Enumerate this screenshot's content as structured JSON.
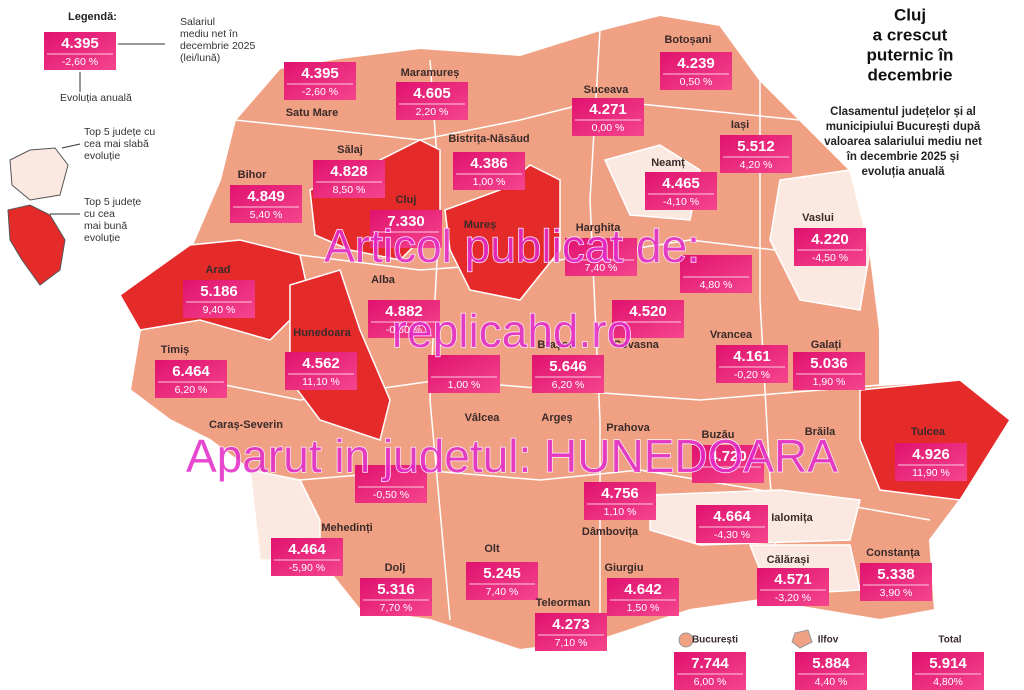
{
  "header": {
    "title": [
      "Cluj",
      "a crescut",
      "puternic în",
      "decembrie"
    ],
    "subtitle": [
      "Clasamentul județelor și al",
      "municipiului București după",
      "valoarea salariului mediu net",
      "în decembrie 2025 și",
      "evoluția anuală"
    ]
  },
  "legend": {
    "heading": "Legendă:",
    "sample": {
      "salary": "4.395",
      "change": "-2,60 %"
    },
    "salary_note": [
      "Salariul",
      "mediu net în",
      "decembrie 2025",
      "(lei/lună)"
    ],
    "change_note": "Evoluția anuală",
    "worst_note": [
      "Top 5 județe cu",
      "cea mai slabă",
      "evoluție"
    ],
    "best_note": [
      "Top 5 județe",
      "cu cea",
      "mai bună",
      "evoluție"
    ]
  },
  "counties": [
    {
      "name": "Satu Mare",
      "salary": "4.395",
      "change": "-2,60 %"
    },
    {
      "name": "Maramureș",
      "salary": "4.605",
      "change": "2,20 %"
    },
    {
      "name": "Botoșani",
      "salary": "4.239",
      "change": "0,50 %"
    },
    {
      "name": "Suceava",
      "salary": "4.271",
      "change": "0,00 %"
    },
    {
      "name": "Iași",
      "salary": "5.512",
      "change": "4,20 %"
    },
    {
      "name": "Neamț",
      "salary": "4.465",
      "change": "-4,10 %"
    },
    {
      "name": "Bistrița-Năsăud",
      "salary": "4.386",
      "change": "1,00 %"
    },
    {
      "name": "Sălaj",
      "salary": "4.828",
      "change": "8,50 %"
    },
    {
      "name": "Bihor",
      "salary": "4.849",
      "change": "5,40 %"
    },
    {
      "name": "Cluj",
      "salary": "7.330"
    },
    {
      "name": "Mureș"
    },
    {
      "name": "Harghita",
      "change": "7,40 %"
    },
    {
      "name": "Vaslui",
      "salary": "4.220",
      "change": "-4,50 %"
    },
    {
      "change": "4,80 %"
    },
    {
      "name": "Arad",
      "salary": "5.186",
      "change": "9,40 %"
    },
    {
      "name": "Alba",
      "salary": "4.882",
      "change": "-0,60 %"
    },
    {
      "name": "Covasna",
      "salary": "4.520"
    },
    {
      "name": "Vrancea",
      "salary": "4.161",
      "change": "-0,20 %"
    },
    {
      "name": "Galați",
      "salary": "5.036",
      "change": "1,90 %"
    },
    {
      "name": "Hunedoara",
      "salary": "4.562",
      "change": "11,10 %"
    },
    {
      "name": "Timiș",
      "salary": "6.464",
      "change": "6,20 %"
    },
    {
      "change": "1,00 %"
    },
    {
      "name": "Brașov",
      "salary": "5.646",
      "change": "6,20 %"
    },
    {
      "name": "Buzău",
      "salary": "4.720"
    },
    {
      "name": "Tulcea",
      "salary": "4.926",
      "change": "11,90 %"
    },
    {
      "name": "Caraș-Severin"
    },
    {
      "name": "Vâlcea"
    },
    {
      "name": "Argeș"
    },
    {
      "name": "Prahova",
      "salary": "4.756",
      "change": "1,10 %"
    },
    {
      "name": "Brăila"
    },
    {
      "change": "-0,50 %"
    },
    {
      "name": "Ialomița",
      "salary": "4.664",
      "change": "-4,30 %"
    },
    {
      "name": "Mehedinți",
      "salary": "4.464",
      "change": "-5,90 %"
    },
    {
      "name": "Dâmbovița"
    },
    {
      "name": "Dolj",
      "salary": "5.316",
      "change": "7,70 %"
    },
    {
      "name": "Olt",
      "salary": "5.245",
      "change": "7,40 %"
    },
    {
      "name": "Giurgiu",
      "salary": "4.642",
      "change": "1,50 %"
    },
    {
      "name": "Călărași",
      "salary": "4.571",
      "change": "-3,20 %"
    },
    {
      "name": "Constanța",
      "salary": "5.338",
      "change": "3,90 %"
    },
    {
      "name": "Teleorman",
      "salary": "4.273",
      "change": "7,10 %"
    }
  ],
  "extras": [
    {
      "name": "București",
      "salary": "7.744",
      "change": "6,00 %"
    },
    {
      "name": "Ilfov",
      "salary": "5.884",
      "change": "4,40 %"
    },
    {
      "name": "Total",
      "salary": "5.914",
      "change": "4,80%"
    }
  ],
  "watermark": [
    "Articol publicat de:",
    "replicahd.ro",
    "Aparut in judetul: HUNEDOARA"
  ]
}
